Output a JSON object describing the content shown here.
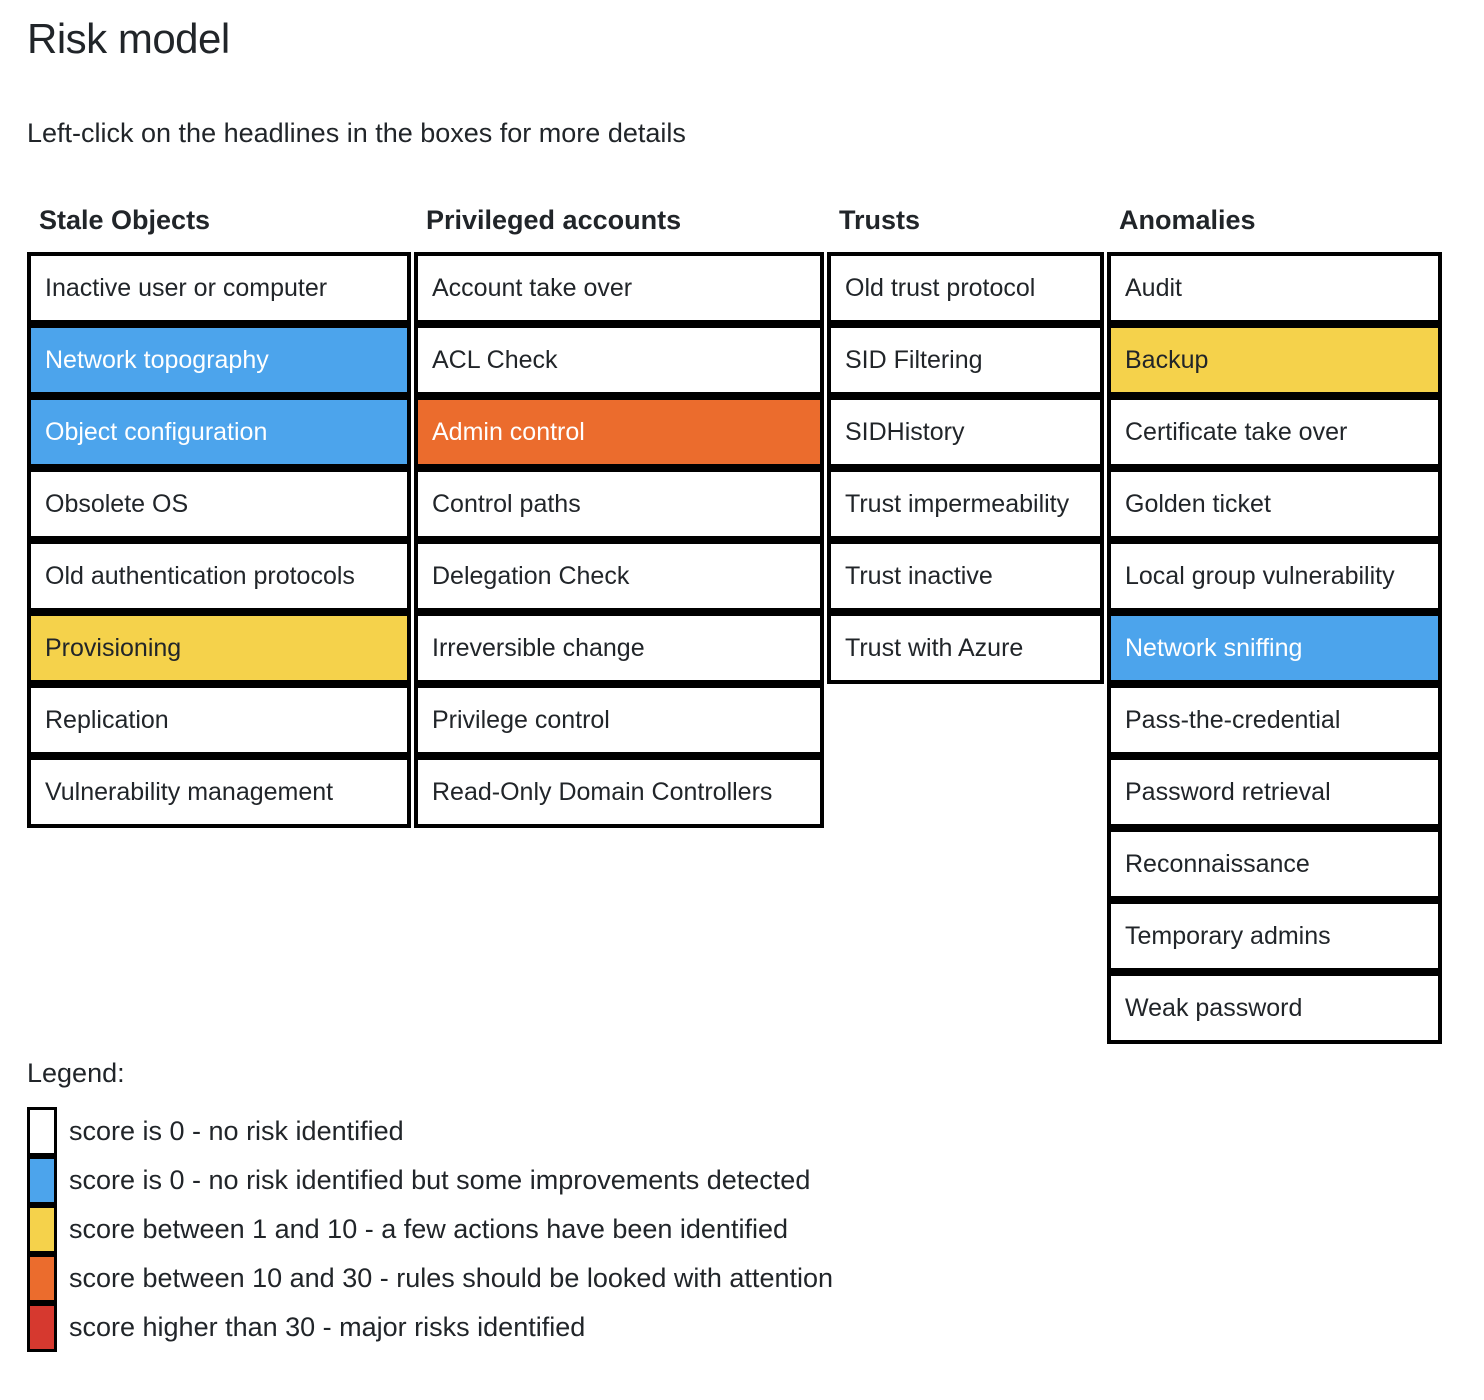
{
  "page": {
    "title": "Risk model",
    "subtitle": "Left-click on the headlines in the boxes for more details"
  },
  "colors": {
    "white": "#ffffff",
    "blue": "#4CA4EC",
    "yellow": "#F5D24B",
    "orange": "#EB6C2D",
    "red": "#D6392F",
    "border": "#000000",
    "text_dark": "#212529",
    "text_light": "#ffffff"
  },
  "columns": [
    {
      "header": "Stale Objects",
      "cells": [
        {
          "label": "Inactive user or computer",
          "color": "white"
        },
        {
          "label": "Network topography",
          "color": "blue"
        },
        {
          "label": "Object configuration",
          "color": "blue"
        },
        {
          "label": "Obsolete OS",
          "color": "white"
        },
        {
          "label": "Old authentication protocols",
          "color": "white"
        },
        {
          "label": "Provisioning",
          "color": "yellow"
        },
        {
          "label": "Replication",
          "color": "white"
        },
        {
          "label": "Vulnerability management",
          "color": "white"
        }
      ]
    },
    {
      "header": "Privileged accounts",
      "cells": [
        {
          "label": "Account take over",
          "color": "white"
        },
        {
          "label": "ACL Check",
          "color": "white"
        },
        {
          "label": "Admin control",
          "color": "orange"
        },
        {
          "label": "Control paths",
          "color": "white"
        },
        {
          "label": "Delegation Check",
          "color": "white"
        },
        {
          "label": "Irreversible change",
          "color": "white"
        },
        {
          "label": "Privilege control",
          "color": "white"
        },
        {
          "label": "Read-Only Domain Controllers",
          "color": "white"
        }
      ]
    },
    {
      "header": "Trusts",
      "cells": [
        {
          "label": "Old trust protocol",
          "color": "white"
        },
        {
          "label": "SID Filtering",
          "color": "white"
        },
        {
          "label": "SIDHistory",
          "color": "white"
        },
        {
          "label": "Trust impermeability",
          "color": "white"
        },
        {
          "label": "Trust inactive",
          "color": "white"
        },
        {
          "label": "Trust with Azure",
          "color": "white"
        }
      ]
    },
    {
      "header": "Anomalies",
      "cells": [
        {
          "label": "Audit",
          "color": "white"
        },
        {
          "label": "Backup",
          "color": "yellow"
        },
        {
          "label": "Certificate take over",
          "color": "white"
        },
        {
          "label": "Golden ticket",
          "color": "white"
        },
        {
          "label": "Local group vulnerability",
          "color": "white"
        },
        {
          "label": "Network sniffing",
          "color": "blue"
        },
        {
          "label": "Pass-the-credential",
          "color": "white"
        },
        {
          "label": "Password retrieval",
          "color": "white"
        },
        {
          "label": "Reconnaissance",
          "color": "white"
        },
        {
          "label": "Temporary admins",
          "color": "white"
        },
        {
          "label": "Weak password",
          "color": "white"
        }
      ]
    }
  ],
  "legend": {
    "title": "Legend:",
    "items": [
      {
        "color": "white",
        "label": "score is 0 - no risk identified"
      },
      {
        "color": "blue",
        "label": "score is 0 - no risk identified but some improvements detected"
      },
      {
        "color": "yellow",
        "label": "score between 1 and 10 - a few actions have been identified"
      },
      {
        "color": "orange",
        "label": "score between 10 and 30 - rules should be looked with attention"
      },
      {
        "color": "red",
        "label": "score higher than 30 - major risks identified"
      }
    ]
  }
}
